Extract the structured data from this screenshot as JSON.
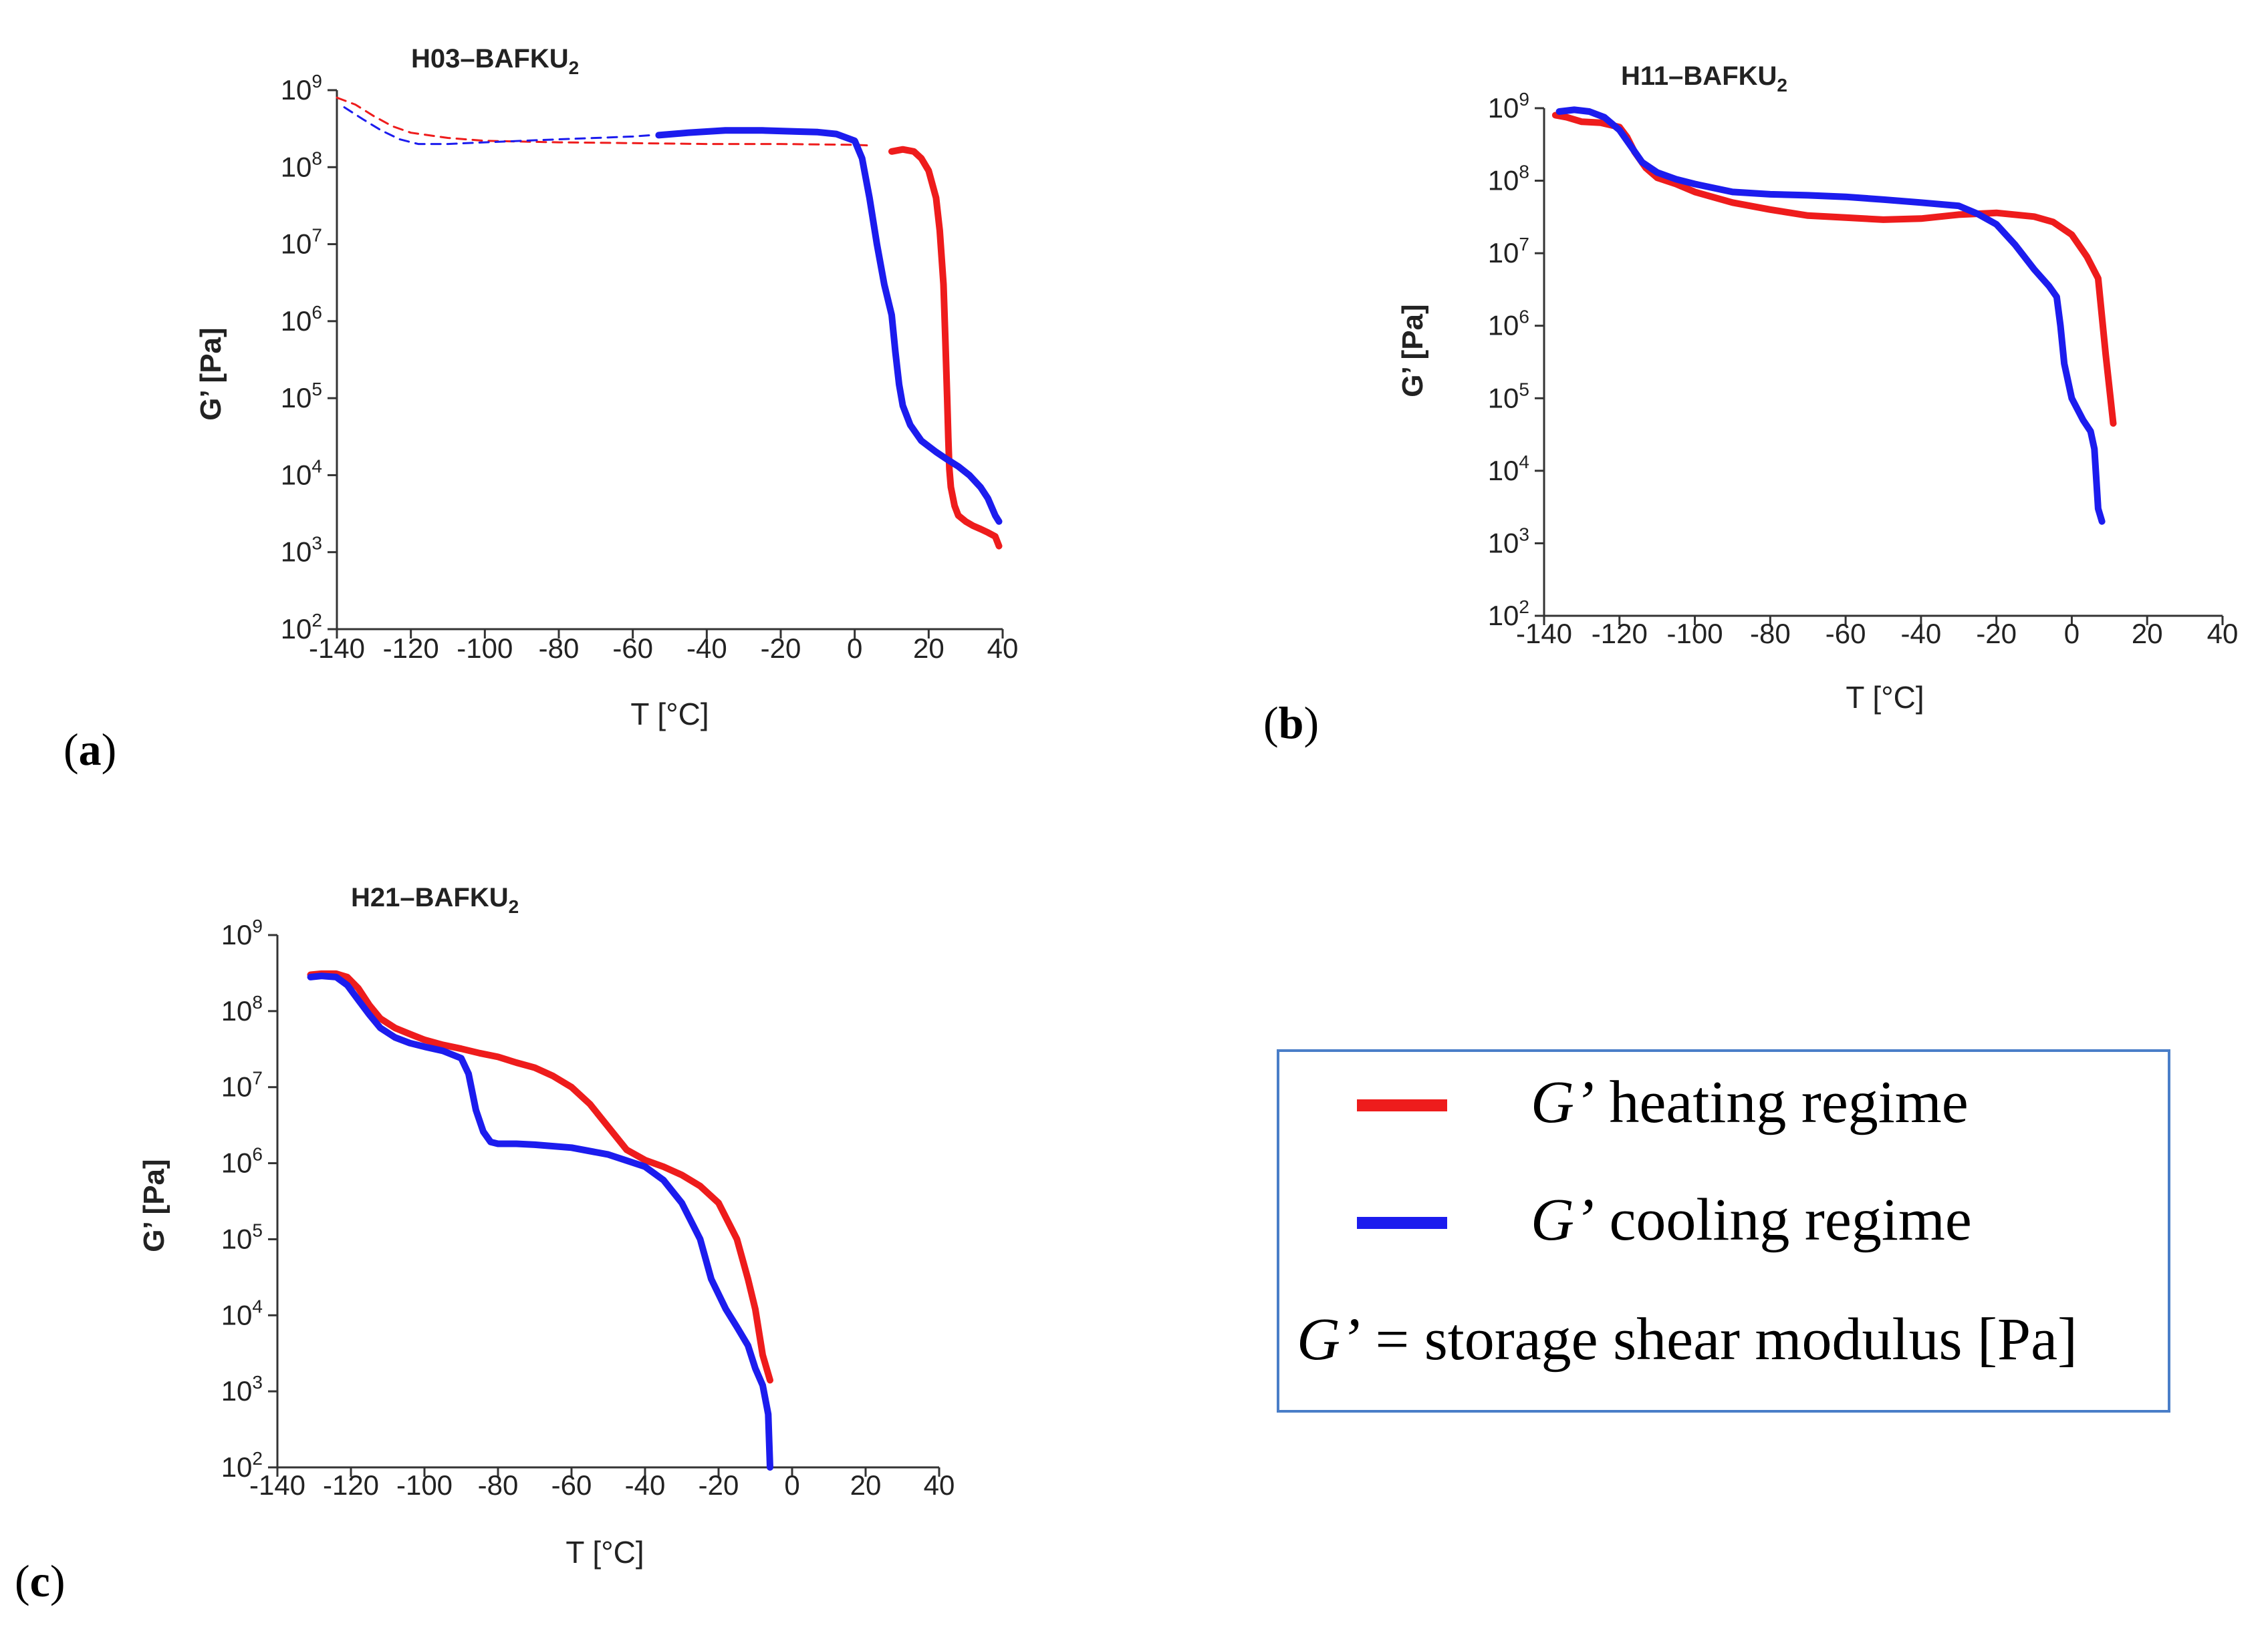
{
  "chart_data": [
    {
      "id": "a",
      "type": "line",
      "panel_label": "a",
      "title": "H03–BAFKU",
      "title_subscript": "2",
      "xlabel": "T [°C]",
      "ylabel": "G’ [Pa]",
      "xlim": [
        -140,
        40
      ],
      "xticks": [
        -140,
        -120,
        -100,
        -80,
        -60,
        -40,
        -20,
        0,
        20,
        40
      ],
      "ylim_exp": [
        2,
        9
      ],
      "yscale": "log",
      "grid": false,
      "series": [
        {
          "color": "#ee1c1c",
          "dashed": true,
          "x": [
            -140,
            -135,
            -130,
            -125,
            -120,
            -110,
            -100,
            -80,
            -60,
            -40,
            -20,
            0,
            5
          ],
          "y": [
            800000000.0,
            650000000.0,
            460000000.0,
            340000000.0,
            280000000.0,
            240000000.0,
            220000000.0,
            210000000.0,
            205000000.0,
            200000000.0,
            200000000.0,
            195000000.0,
            190000000.0
          ]
        },
        {
          "color": "#1c1cee",
          "dashed": true,
          "x": [
            -138,
            -133,
            -128,
            -123,
            -118,
            -110,
            -100,
            -90,
            -80,
            -70,
            -60,
            -55
          ],
          "y": [
            600000000.0,
            420000000.0,
            300000000.0,
            230000000.0,
            200000000.0,
            200000000.0,
            210000000.0,
            220000000.0,
            230000000.0,
            240000000.0,
            250000000.0,
            260000000.0
          ]
        },
        {
          "color": "#ee1c1c",
          "dashed": false,
          "x": [
            10,
            13,
            16,
            18,
            20,
            22,
            23,
            24,
            24.5,
            25,
            25.3,
            25.6,
            26,
            27,
            28,
            30,
            32,
            34,
            36,
            38,
            39
          ],
          "y": [
            160000000.0,
            170000000.0,
            160000000.0,
            130000000.0,
            90000000.0,
            40000000.0,
            15000000.0,
            3000000.0,
            600000.0,
            100000.0,
            30000.0,
            12000.0,
            7000.0,
            4000.0,
            3000.0,
            2500.0,
            2200.0,
            2000.0,
            1800.0,
            1600.0,
            1200.0
          ]
        },
        {
          "color": "#1c1cee",
          "dashed": false,
          "x": [
            -53,
            -45,
            -35,
            -25,
            -15,
            -10,
            -5,
            0,
            2,
            4,
            6,
            8,
            10,
            11,
            12,
            13,
            15,
            18,
            22,
            25,
            28,
            31,
            34,
            36,
            38,
            39
          ],
          "y": [
            260000000.0,
            280000000.0,
            300000000.0,
            300000000.0,
            290000000.0,
            285000000.0,
            270000000.0,
            220000000.0,
            130000000.0,
            40000000.0,
            10000000.0,
            3000000.0,
            1200000.0,
            400000.0,
            150000.0,
            80000.0,
            45000.0,
            28000.0,
            20000.0,
            16000.0,
            13000.0,
            10000.0,
            7000.0,
            5000.0,
            3000.0,
            2500.0
          ]
        }
      ]
    },
    {
      "id": "b",
      "type": "line",
      "panel_label": "b",
      "title": "H11–BAFKU",
      "title_subscript": "2",
      "xlabel": "T [°C]",
      "ylabel": "G’ [Pa]",
      "xlim": [
        -140,
        40
      ],
      "xticks": [
        -140,
        -120,
        -100,
        -80,
        -60,
        -40,
        -20,
        0,
        20,
        40
      ],
      "ylim_exp": [
        2,
        9
      ],
      "yscale": "log",
      "grid": false,
      "series": [
        {
          "color": "#ee1c1c",
          "dashed": false,
          "x": [
            -137,
            -134,
            -130,
            -125,
            -120,
            -118,
            -116,
            -113,
            -110,
            -105,
            -100,
            -90,
            -80,
            -70,
            -60,
            -50,
            -40,
            -30,
            -20,
            -10,
            -5,
            0,
            4,
            7,
            9,
            11
          ],
          "y": [
            800000000.0,
            750000000.0,
            650000000.0,
            630000000.0,
            550000000.0,
            400000000.0,
            250000000.0,
            150000000.0,
            110000000.0,
            90000000.0,
            70000000.0,
            50000000.0,
            40000000.0,
            33000000.0,
            31000000.0,
            29000000.0,
            30000000.0,
            34000000.0,
            36000000.0,
            32000000.0,
            27000000.0,
            18000000.0,
            9000000.0,
            4500000.0,
            400000.0,
            45000.0
          ]
        },
        {
          "color": "#1c1cee",
          "dashed": false,
          "x": [
            -136,
            -132,
            -128,
            -124,
            -120,
            -117,
            -114,
            -110,
            -105,
            -100,
            -90,
            -80,
            -70,
            -60,
            -50,
            -40,
            -30,
            -25,
            -20,
            -15,
            -10,
            -6,
            -4,
            -3,
            -2,
            0,
            3,
            5,
            6,
            7,
            8
          ],
          "y": [
            900000000.0,
            950000000.0,
            900000000.0,
            750000000.0,
            500000000.0,
            300000000.0,
            180000000.0,
            130000000.0,
            105000000.0,
            90000000.0,
            70000000.0,
            65000000.0,
            63000000.0,
            60000000.0,
            55000000.0,
            50000000.0,
            45000000.0,
            35000000.0,
            25000000.0,
            13000000.0,
            6000000.0,
            3500000.0,
            2500000.0,
            1000000.0,
            300000.0,
            100000.0,
            50000.0,
            35000.0,
            20000.0,
            3000.0,
            2000.0
          ]
        }
      ]
    },
    {
      "id": "c",
      "type": "line",
      "panel_label": "c",
      "title": "H21–BAFKU",
      "title_subscript": "2",
      "xlabel": "T [°C]",
      "ylabel": "G’ [Pa]",
      "xlim": [
        -140,
        40
      ],
      "xticks": [
        -140,
        -120,
        -100,
        -80,
        -60,
        -40,
        -20,
        0,
        20,
        40
      ],
      "ylim_exp": [
        2,
        9
      ],
      "yscale": "log",
      "grid": false,
      "series": [
        {
          "color": "#ee1c1c",
          "dashed": false,
          "x": [
            -131,
            -128,
            -124,
            -121,
            -118,
            -115,
            -112,
            -108,
            -104,
            -100,
            -95,
            -90,
            -85,
            -80,
            -75,
            -70,
            -65,
            -60,
            -55,
            -50,
            -45,
            -40,
            -35,
            -30,
            -25,
            -20,
            -15,
            -12,
            -10,
            -8,
            -6
          ],
          "y": [
            300000000.0,
            310000000.0,
            310000000.0,
            280000000.0,
            200000000.0,
            120000000.0,
            80000000.0,
            60000000.0,
            50000000.0,
            42000000.0,
            36000000.0,
            32000000.0,
            28000000.0,
            25000000.0,
            21000000.0,
            18000000.0,
            14000000.0,
            10000000.0,
            6000000.0,
            3000000.0,
            1500000.0,
            1100000.0,
            900000.0,
            700000.0,
            500000.0,
            300000.0,
            100000.0,
            30000.0,
            12000.0,
            3000.0,
            1400.0
          ]
        },
        {
          "color": "#1c1cee",
          "dashed": false,
          "x": [
            -131,
            -128,
            -124,
            -121,
            -118,
            -115,
            -112,
            -108,
            -104,
            -100,
            -95,
            -90,
            -88,
            -86,
            -84,
            -82,
            -80,
            -75,
            -70,
            -60,
            -50,
            -40,
            -35,
            -30,
            -25,
            -22,
            -18,
            -15,
            -12,
            -10,
            -8,
            -6.5,
            -6
          ],
          "y": [
            280000000.0,
            290000000.0,
            280000000.0,
            220000000.0,
            140000000.0,
            90000000.0,
            60000000.0,
            45000000.0,
            38000000.0,
            34000000.0,
            30000000.0,
            24000000.0,
            15000000.0,
            5000000.0,
            2600000.0,
            1900000.0,
            1800000.0,
            1800000.0,
            1750000.0,
            1600000.0,
            1300000.0,
            900000.0,
            600000.0,
            300000.0,
            100000.0,
            30000.0,
            12000.0,
            7000.0,
            4000.0,
            2000.0,
            1200.0,
            500.0,
            100.0
          ]
        }
      ]
    }
  ],
  "legend": {
    "items": [
      {
        "color": "#ee1c1c",
        "symbol": "G’",
        "text": " heating regime"
      },
      {
        "color": "#1c1cee",
        "symbol": "G’",
        "text": " cooling regime"
      }
    ],
    "note_symbol": "G’",
    "note_text": " = storage shear modulus [Pa]",
    "border_color": "#4a7ec8"
  }
}
